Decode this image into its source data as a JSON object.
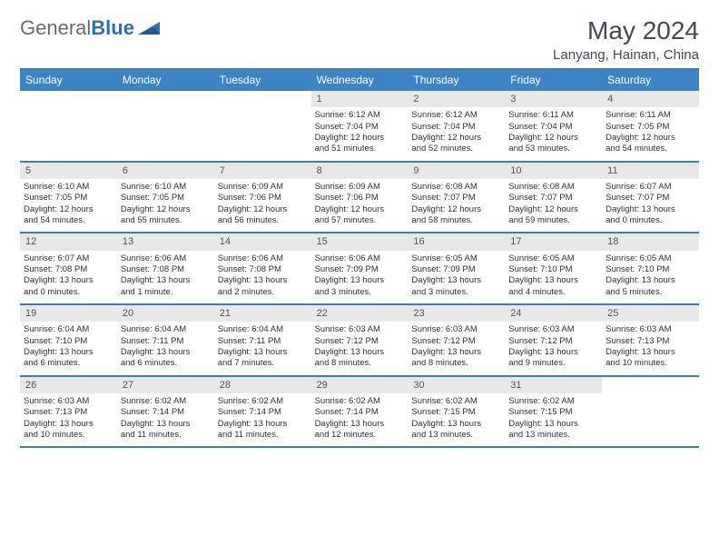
{
  "logo": {
    "textGrey": "General",
    "textBlue": "Blue"
  },
  "title": {
    "month": "May 2024",
    "location": "Lanyang, Hainan, China"
  },
  "colors": {
    "headerBlue": "#3a85c6",
    "ruleBlue": "#3a7fbc",
    "cellHead": "#e8e8e8"
  },
  "dayNames": [
    "Sunday",
    "Monday",
    "Tuesday",
    "Wednesday",
    "Thursday",
    "Friday",
    "Saturday"
  ],
  "weeks": [
    [
      null,
      null,
      null,
      {
        "d": "1",
        "sr": "Sunrise: 6:12 AM",
        "ss": "Sunset: 7:04 PM",
        "dl1": "Daylight: 12 hours",
        "dl2": "and 51 minutes."
      },
      {
        "d": "2",
        "sr": "Sunrise: 6:12 AM",
        "ss": "Sunset: 7:04 PM",
        "dl1": "Daylight: 12 hours",
        "dl2": "and 52 minutes."
      },
      {
        "d": "3",
        "sr": "Sunrise: 6:11 AM",
        "ss": "Sunset: 7:04 PM",
        "dl1": "Daylight: 12 hours",
        "dl2": "and 53 minutes."
      },
      {
        "d": "4",
        "sr": "Sunrise: 6:11 AM",
        "ss": "Sunset: 7:05 PM",
        "dl1": "Daylight: 12 hours",
        "dl2": "and 54 minutes."
      }
    ],
    [
      {
        "d": "5",
        "sr": "Sunrise: 6:10 AM",
        "ss": "Sunset: 7:05 PM",
        "dl1": "Daylight: 12 hours",
        "dl2": "and 54 minutes."
      },
      {
        "d": "6",
        "sr": "Sunrise: 6:10 AM",
        "ss": "Sunset: 7:05 PM",
        "dl1": "Daylight: 12 hours",
        "dl2": "and 55 minutes."
      },
      {
        "d": "7",
        "sr": "Sunrise: 6:09 AM",
        "ss": "Sunset: 7:06 PM",
        "dl1": "Daylight: 12 hours",
        "dl2": "and 56 minutes."
      },
      {
        "d": "8",
        "sr": "Sunrise: 6:09 AM",
        "ss": "Sunset: 7:06 PM",
        "dl1": "Daylight: 12 hours",
        "dl2": "and 57 minutes."
      },
      {
        "d": "9",
        "sr": "Sunrise: 6:08 AM",
        "ss": "Sunset: 7:07 PM",
        "dl1": "Daylight: 12 hours",
        "dl2": "and 58 minutes."
      },
      {
        "d": "10",
        "sr": "Sunrise: 6:08 AM",
        "ss": "Sunset: 7:07 PM",
        "dl1": "Daylight: 12 hours",
        "dl2": "and 59 minutes."
      },
      {
        "d": "11",
        "sr": "Sunrise: 6:07 AM",
        "ss": "Sunset: 7:07 PM",
        "dl1": "Daylight: 13 hours",
        "dl2": "and 0 minutes."
      }
    ],
    [
      {
        "d": "12",
        "sr": "Sunrise: 6:07 AM",
        "ss": "Sunset: 7:08 PM",
        "dl1": "Daylight: 13 hours",
        "dl2": "and 0 minutes."
      },
      {
        "d": "13",
        "sr": "Sunrise: 6:06 AM",
        "ss": "Sunset: 7:08 PM",
        "dl1": "Daylight: 13 hours",
        "dl2": "and 1 minute."
      },
      {
        "d": "14",
        "sr": "Sunrise: 6:06 AM",
        "ss": "Sunset: 7:08 PM",
        "dl1": "Daylight: 13 hours",
        "dl2": "and 2 minutes."
      },
      {
        "d": "15",
        "sr": "Sunrise: 6:06 AM",
        "ss": "Sunset: 7:09 PM",
        "dl1": "Daylight: 13 hours",
        "dl2": "and 3 minutes."
      },
      {
        "d": "16",
        "sr": "Sunrise: 6:05 AM",
        "ss": "Sunset: 7:09 PM",
        "dl1": "Daylight: 13 hours",
        "dl2": "and 3 minutes."
      },
      {
        "d": "17",
        "sr": "Sunrise: 6:05 AM",
        "ss": "Sunset: 7:10 PM",
        "dl1": "Daylight: 13 hours",
        "dl2": "and 4 minutes."
      },
      {
        "d": "18",
        "sr": "Sunrise: 6:05 AM",
        "ss": "Sunset: 7:10 PM",
        "dl1": "Daylight: 13 hours",
        "dl2": "and 5 minutes."
      }
    ],
    [
      {
        "d": "19",
        "sr": "Sunrise: 6:04 AM",
        "ss": "Sunset: 7:10 PM",
        "dl1": "Daylight: 13 hours",
        "dl2": "and 6 minutes."
      },
      {
        "d": "20",
        "sr": "Sunrise: 6:04 AM",
        "ss": "Sunset: 7:11 PM",
        "dl1": "Daylight: 13 hours",
        "dl2": "and 6 minutes."
      },
      {
        "d": "21",
        "sr": "Sunrise: 6:04 AM",
        "ss": "Sunset: 7:11 PM",
        "dl1": "Daylight: 13 hours",
        "dl2": "and 7 minutes."
      },
      {
        "d": "22",
        "sr": "Sunrise: 6:03 AM",
        "ss": "Sunset: 7:12 PM",
        "dl1": "Daylight: 13 hours",
        "dl2": "and 8 minutes."
      },
      {
        "d": "23",
        "sr": "Sunrise: 6:03 AM",
        "ss": "Sunset: 7:12 PM",
        "dl1": "Daylight: 13 hours",
        "dl2": "and 8 minutes."
      },
      {
        "d": "24",
        "sr": "Sunrise: 6:03 AM",
        "ss": "Sunset: 7:12 PM",
        "dl1": "Daylight: 13 hours",
        "dl2": "and 9 minutes."
      },
      {
        "d": "25",
        "sr": "Sunrise: 6:03 AM",
        "ss": "Sunset: 7:13 PM",
        "dl1": "Daylight: 13 hours",
        "dl2": "and 10 minutes."
      }
    ],
    [
      {
        "d": "26",
        "sr": "Sunrise: 6:03 AM",
        "ss": "Sunset: 7:13 PM",
        "dl1": "Daylight: 13 hours",
        "dl2": "and 10 minutes."
      },
      {
        "d": "27",
        "sr": "Sunrise: 6:02 AM",
        "ss": "Sunset: 7:14 PM",
        "dl1": "Daylight: 13 hours",
        "dl2": "and 11 minutes."
      },
      {
        "d": "28",
        "sr": "Sunrise: 6:02 AM",
        "ss": "Sunset: 7:14 PM",
        "dl1": "Daylight: 13 hours",
        "dl2": "and 11 minutes."
      },
      {
        "d": "29",
        "sr": "Sunrise: 6:02 AM",
        "ss": "Sunset: 7:14 PM",
        "dl1": "Daylight: 13 hours",
        "dl2": "and 12 minutes."
      },
      {
        "d": "30",
        "sr": "Sunrise: 6:02 AM",
        "ss": "Sunset: 7:15 PM",
        "dl1": "Daylight: 13 hours",
        "dl2": "and 13 minutes."
      },
      {
        "d": "31",
        "sr": "Sunrise: 6:02 AM",
        "ss": "Sunset: 7:15 PM",
        "dl1": "Daylight: 13 hours",
        "dl2": "and 13 minutes."
      },
      null
    ]
  ]
}
